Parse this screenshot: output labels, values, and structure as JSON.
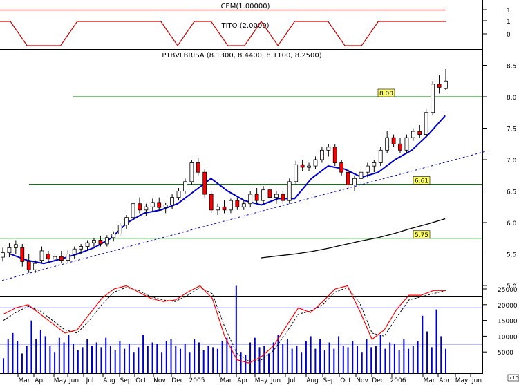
{
  "chart_data": {
    "type": "candlestick",
    "panels": {
      "cem": {
        "title": "CEM(1.00000)",
        "yticks": [
          "1"
        ],
        "value": 1
      },
      "tito": {
        "title": "TITO (2.0000)",
        "yticks": [
          "0",
          "1"
        ],
        "x": [
          "2004-02",
          "2004-03",
          "2004-04",
          "2004-05",
          "2004-06",
          "2004-07",
          "2004-08",
          "2004-09",
          "2004-10",
          "2004-11",
          "2004-12",
          "2005-01",
          "2005-02",
          "2005-03",
          "2005-04",
          "2005-05",
          "2005-06",
          "2005-07",
          "2005-08",
          "2005-09",
          "2005-10",
          "2005-11",
          "2005-12",
          "2006-01",
          "2006-02",
          "2006-03",
          "2006-04"
        ],
        "values": [
          1,
          0,
          0,
          0,
          1,
          1,
          1,
          1,
          1,
          1,
          0,
          1,
          1,
          0,
          0,
          1,
          0,
          1,
          1,
          1,
          0,
          0,
          1,
          1,
          1,
          1,
          1
        ]
      },
      "price": {
        "title": "PTBVLBRISA (8.1300, 8.4400, 8.1100, 8.2500)",
        "ylim": [
          4.9,
          8.6
        ],
        "yticks": [
          "5.0",
          "5.5",
          "6.0",
          "6.5",
          "7.0",
          "7.5",
          "8.0",
          "8.5"
        ],
        "horizontal_lines": [
          {
            "value": 8.0,
            "label": "8.00"
          },
          {
            "value": 6.61,
            "label": "6.61"
          },
          {
            "value": 5.75,
            "label": "5.75"
          }
        ],
        "trendline": {
          "points": [
            [
              "2004-02",
              5.08
            ],
            [
              "2006-05",
              7.05
            ]
          ]
        },
        "series": [
          {
            "kind": "ma_short",
            "color": "#0000cc",
            "x": [
              "2004-02",
              "2004-03",
              "2004-04",
              "2004-05",
              "2004-06",
              "2004-07",
              "2004-08",
              "2004-09",
              "2004-10",
              "2004-11",
              "2004-12",
              "2005-01",
              "2005-02",
              "2005-03",
              "2005-04",
              "2005-05",
              "2005-06",
              "2005-07",
              "2005-08",
              "2005-09",
              "2005-10",
              "2005-11",
              "2005-12",
              "2006-01",
              "2006-02",
              "2006-03",
              "2006-04"
            ],
            "values": [
              5.5,
              5.4,
              5.35,
              5.42,
              5.5,
              5.6,
              5.75,
              6.0,
              6.15,
              6.2,
              6.3,
              6.5,
              6.7,
              6.5,
              6.35,
              6.28,
              6.38,
              6.38,
              6.7,
              6.9,
              6.85,
              6.72,
              6.8,
              7.0,
              7.15,
              7.4,
              7.7
            ]
          },
          {
            "kind": "ma_long",
            "color": "#000000",
            "x": [
              "2005-05",
              "2005-06",
              "2005-07",
              "2005-08",
              "2005-09",
              "2005-10",
              "2005-11",
              "2005-12",
              "2006-01",
              "2006-02",
              "2006-03",
              "2006-04"
            ],
            "values": [
              5.44,
              5.47,
              5.5,
              5.54,
              5.59,
              5.65,
              5.71,
              5.76,
              5.83,
              5.91,
              5.98,
              6.06
            ]
          }
        ],
        "candles": [
          {
            "o": 5.45,
            "h": 5.6,
            "l": 5.38,
            "c": 5.52
          },
          {
            "o": 5.52,
            "h": 5.68,
            "l": 5.45,
            "c": 5.6
          },
          {
            "o": 5.6,
            "h": 5.72,
            "l": 5.5,
            "c": 5.65
          },
          {
            "o": 5.6,
            "h": 5.66,
            "l": 5.3,
            "c": 5.38
          },
          {
            "o": 5.38,
            "h": 5.5,
            "l": 5.2,
            "c": 5.25
          },
          {
            "o": 5.25,
            "h": 5.4,
            "l": 5.2,
            "c": 5.35
          },
          {
            "o": 5.4,
            "h": 5.62,
            "l": 5.35,
            "c": 5.55
          },
          {
            "o": 5.5,
            "h": 5.55,
            "l": 5.35,
            "c": 5.42
          },
          {
            "o": 5.42,
            "h": 5.52,
            "l": 5.32,
            "c": 5.46
          },
          {
            "o": 5.46,
            "h": 5.55,
            "l": 5.35,
            "c": 5.4
          },
          {
            "o": 5.4,
            "h": 5.56,
            "l": 5.35,
            "c": 5.5
          },
          {
            "o": 5.5,
            "h": 5.62,
            "l": 5.42,
            "c": 5.58
          },
          {
            "o": 5.58,
            "h": 5.66,
            "l": 5.5,
            "c": 5.62
          },
          {
            "o": 5.62,
            "h": 5.72,
            "l": 5.55,
            "c": 5.68
          },
          {
            "o": 5.68,
            "h": 5.76,
            "l": 5.6,
            "c": 5.72
          },
          {
            "o": 5.72,
            "h": 5.78,
            "l": 5.62,
            "c": 5.66
          },
          {
            "o": 5.66,
            "h": 5.8,
            "l": 5.62,
            "c": 5.76
          },
          {
            "o": 5.76,
            "h": 5.86,
            "l": 5.7,
            "c": 5.82
          },
          {
            "o": 5.82,
            "h": 6.0,
            "l": 5.78,
            "c": 5.96
          },
          {
            "o": 5.96,
            "h": 6.12,
            "l": 5.9,
            "c": 6.08
          },
          {
            "o": 6.08,
            "h": 6.35,
            "l": 6.05,
            "c": 6.3
          },
          {
            "o": 6.3,
            "h": 6.4,
            "l": 6.15,
            "c": 6.2
          },
          {
            "o": 6.2,
            "h": 6.3,
            "l": 6.1,
            "c": 6.25
          },
          {
            "o": 6.25,
            "h": 6.38,
            "l": 6.18,
            "c": 6.32
          },
          {
            "o": 6.32,
            "h": 6.4,
            "l": 6.2,
            "c": 6.24
          },
          {
            "o": 6.24,
            "h": 6.32,
            "l": 6.15,
            "c": 6.28
          },
          {
            "o": 6.28,
            "h": 6.45,
            "l": 6.22,
            "c": 6.4
          },
          {
            "o": 6.4,
            "h": 6.55,
            "l": 6.35,
            "c": 6.5
          },
          {
            "o": 6.5,
            "h": 6.7,
            "l": 6.45,
            "c": 6.65
          },
          {
            "o": 6.65,
            "h": 7.0,
            "l": 6.6,
            "c": 6.95
          },
          {
            "o": 6.95,
            "h": 7.02,
            "l": 6.75,
            "c": 6.8
          },
          {
            "o": 6.8,
            "h": 6.85,
            "l": 6.4,
            "c": 6.45
          },
          {
            "o": 6.45,
            "h": 6.5,
            "l": 6.15,
            "c": 6.2
          },
          {
            "o": 6.2,
            "h": 6.3,
            "l": 6.12,
            "c": 6.25
          },
          {
            "o": 6.25,
            "h": 6.35,
            "l": 6.15,
            "c": 6.2
          },
          {
            "o": 6.2,
            "h": 6.38,
            "l": 6.15,
            "c": 6.35
          },
          {
            "o": 6.35,
            "h": 6.4,
            "l": 6.2,
            "c": 6.25
          },
          {
            "o": 6.25,
            "h": 6.35,
            "l": 6.2,
            "c": 6.3
          },
          {
            "o": 6.3,
            "h": 6.5,
            "l": 6.25,
            "c": 6.45
          },
          {
            "o": 6.45,
            "h": 6.55,
            "l": 6.3,
            "c": 6.35
          },
          {
            "o": 6.35,
            "h": 6.58,
            "l": 6.3,
            "c": 6.52
          },
          {
            "o": 6.52,
            "h": 6.6,
            "l": 6.35,
            "c": 6.4
          },
          {
            "o": 6.4,
            "h": 6.5,
            "l": 6.3,
            "c": 6.45
          },
          {
            "o": 6.45,
            "h": 6.5,
            "l": 6.3,
            "c": 6.35
          },
          {
            "o": 6.35,
            "h": 6.7,
            "l": 6.3,
            "c": 6.65
          },
          {
            "o": 6.65,
            "h": 6.98,
            "l": 6.6,
            "c": 6.92
          },
          {
            "o": 6.92,
            "h": 7.0,
            "l": 6.82,
            "c": 6.88
          },
          {
            "o": 6.88,
            "h": 6.95,
            "l": 6.82,
            "c": 6.9
          },
          {
            "o": 6.9,
            "h": 7.05,
            "l": 6.85,
            "c": 7.0
          },
          {
            "o": 7.0,
            "h": 7.2,
            "l": 6.95,
            "c": 7.15
          },
          {
            "o": 7.15,
            "h": 7.25,
            "l": 7.05,
            "c": 7.2
          },
          {
            "o": 7.2,
            "h": 7.25,
            "l": 6.9,
            "c": 6.95
          },
          {
            "o": 6.95,
            "h": 7.0,
            "l": 6.75,
            "c": 6.8
          },
          {
            "o": 6.8,
            "h": 6.85,
            "l": 6.55,
            "c": 6.6
          },
          {
            "o": 6.6,
            "h": 6.75,
            "l": 6.5,
            "c": 6.7
          },
          {
            "o": 6.7,
            "h": 6.85,
            "l": 6.6,
            "c": 6.8
          },
          {
            "o": 6.8,
            "h": 6.95,
            "l": 6.72,
            "c": 6.9
          },
          {
            "o": 6.9,
            "h": 7.0,
            "l": 6.8,
            "c": 6.95
          },
          {
            "o": 6.95,
            "h": 7.2,
            "l": 6.9,
            "c": 7.15
          },
          {
            "o": 7.15,
            "h": 7.45,
            "l": 7.1,
            "c": 7.35
          },
          {
            "o": 7.35,
            "h": 7.4,
            "l": 7.2,
            "c": 7.25
          },
          {
            "o": 7.25,
            "h": 7.35,
            "l": 7.1,
            "c": 7.15
          },
          {
            "o": 7.15,
            "h": 7.4,
            "l": 7.1,
            "c": 7.35
          },
          {
            "o": 7.35,
            "h": 7.5,
            "l": 7.3,
            "c": 7.45
          },
          {
            "o": 7.45,
            "h": 7.55,
            "l": 7.35,
            "c": 7.4
          },
          {
            "o": 7.4,
            "h": 7.8,
            "l": 7.35,
            "c": 7.75
          },
          {
            "o": 7.75,
            "h": 8.25,
            "l": 7.7,
            "c": 8.2
          },
          {
            "o": 8.2,
            "h": 8.35,
            "l": 8.05,
            "c": 8.15
          },
          {
            "o": 8.13,
            "h": 8.44,
            "l": 8.11,
            "c": 8.25
          }
        ]
      },
      "oscillator": {
        "yticks": [
          "5000",
          "10000",
          "15000",
          "20000",
          "25000"
        ],
        "x_scale_label": "x1000",
        "ylim": [
          0,
          28000
        ],
        "reference_lines": [
          19000,
          7500
        ],
        "osc_solid": [
          17000,
          19000,
          20000,
          17000,
          14000,
          11000,
          12000,
          17000,
          22000,
          25000,
          26000,
          24000,
          22000,
          21000,
          21500,
          24000,
          26000,
          22000,
          10000,
          2500,
          1500,
          3500,
          7000,
          13000,
          19000,
          17500,
          21000,
          25000,
          26000,
          18000,
          9000,
          12000,
          18500,
          23000,
          23000,
          24500,
          24500
        ],
        "osc_dashed": [
          15000,
          17500,
          19500,
          18000,
          15000,
          12000,
          11000,
          15000,
          20000,
          24000,
          25500,
          24500,
          22500,
          21500,
          21000,
          23000,
          25500,
          23500,
          13000,
          4500,
          2000,
          2500,
          5500,
          11000,
          17000,
          18000,
          20000,
          24000,
          25500,
          20500,
          11000,
          10000,
          16000,
          21500,
          22500,
          23500,
          24500
        ],
        "volumes": [
          3000,
          9000,
          11000,
          8500,
          4500,
          7000,
          15000,
          9000,
          12000,
          10000,
          7000,
          5000,
          9500,
          8000,
          10500,
          7500,
          5500,
          6500,
          9000,
          7000,
          8000,
          6500,
          9500,
          7000,
          5500,
          8500,
          6000,
          7500,
          5000,
          6500,
          10500,
          7000,
          8000,
          7500,
          5000,
          8500,
          9000,
          7000,
          6000,
          7500,
          5000,
          9000,
          8000,
          5500,
          7000,
          6500,
          6000,
          8500,
          9500,
          7000,
          26000,
          5000,
          4000,
          8000,
          9500,
          6500,
          7000,
          4500,
          8000,
          10500,
          7500,
          9000,
          6000,
          7000,
          5000,
          8500,
          10000,
          6000,
          9000,
          5500,
          8000,
          6000,
          10000,
          7000,
          6500,
          8500,
          7000,
          5000,
          9000,
          6500,
          7000,
          10500,
          6000,
          8000,
          7500,
          5500,
          9000,
          6000,
          7000,
          8500,
          16500,
          11500,
          6500,
          18500,
          10000,
          6000
        ]
      }
    },
    "x_axis": {
      "ticks": [
        "Mar",
        "Apr",
        "May",
        "Jun",
        "Jul",
        "Aug",
        "Sep",
        "Oct",
        "Nov",
        "Dec",
        "2005",
        "Mar",
        "Apr",
        "May",
        "Jun",
        "Jul",
        "Aug",
        "Sep",
        "Oct",
        "Nov",
        "Dec",
        "2006",
        "Mar",
        "Apr",
        "May",
        "Jun"
      ]
    },
    "colors": {
      "up_body": "#ffffff",
      "down_body": "#ff0000",
      "support_line": "#008000",
      "trend": "#0000cc",
      "osc": "#ff0000",
      "volume": "#0000cc",
      "label_bg": "#ffff66"
    }
  }
}
